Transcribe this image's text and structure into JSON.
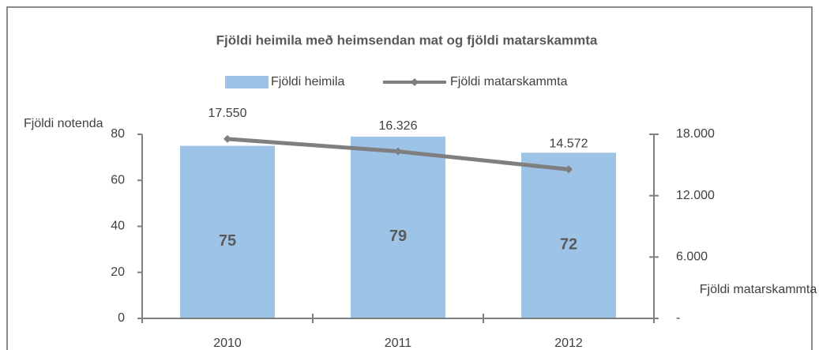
{
  "chart_data": {
    "type": "bar-line",
    "title": "Fjöldi heimila með heimsendan mat og fjöldi matarskammta",
    "ylabel": "Fjöldi notenda",
    "y2label": "Fjöldi matarskammta",
    "categories": [
      "2010",
      "2011",
      "2012"
    ],
    "series": [
      {
        "name": "Fjöldi heimila",
        "type": "bar",
        "color": "#9dc3e6",
        "values": [
          75,
          79,
          72
        ]
      },
      {
        "name": "Fjöldi matarskammta",
        "type": "line",
        "axis": "y2",
        "color": "#7f7f7f",
        "values": [
          17550,
          16326,
          14572
        ],
        "value_labels": [
          "17.550",
          "16.326",
          "14.572"
        ]
      }
    ],
    "ylim": [
      0,
      80
    ],
    "yticks": [
      0,
      20,
      40,
      60,
      80
    ],
    "y2lim": [
      0,
      18000
    ],
    "y2ticks": [
      {
        "value": 0,
        "label": "-"
      },
      {
        "value": 6000,
        "label": "6.000"
      },
      {
        "value": 12000,
        "label": "12.000"
      },
      {
        "value": 18000,
        "label": "18.000"
      }
    ],
    "grid": false,
    "legend": "top"
  }
}
